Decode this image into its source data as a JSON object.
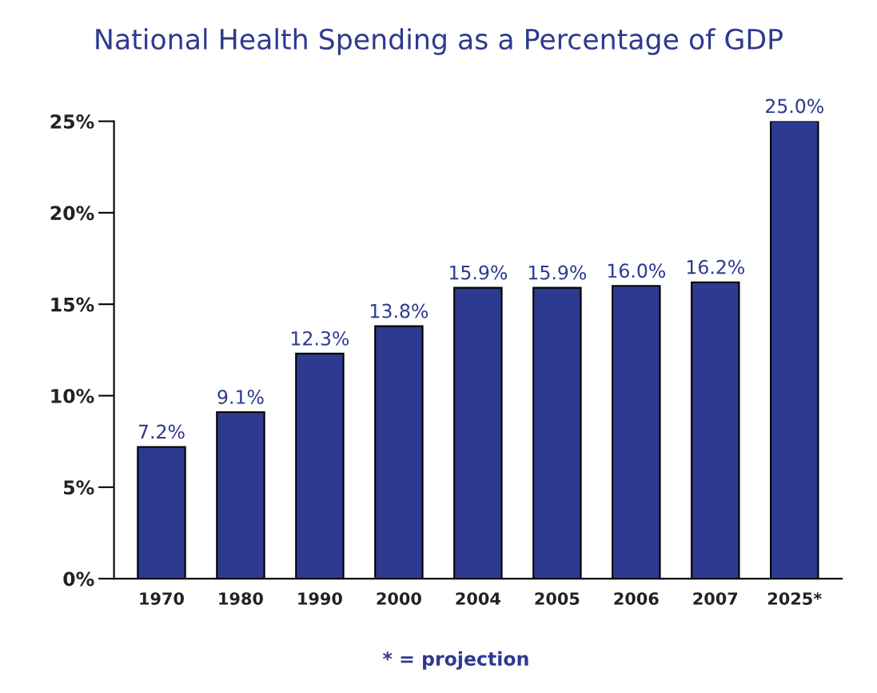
{
  "chart_data": {
    "type": "bar",
    "title": "National Health Spending as a Percentage of GDP",
    "categories": [
      "1970",
      "1980",
      "1990",
      "2000",
      "2004",
      "2005",
      "2006",
      "2007",
      "2025*"
    ],
    "values": [
      7.2,
      9.1,
      12.3,
      13.8,
      15.9,
      15.9,
      16.0,
      16.2,
      25.0
    ],
    "value_labels": [
      "7.2%",
      "9.1%",
      "12.3%",
      "13.8%",
      "15.9%",
      "15.9%",
      "16.0%",
      "16.2%",
      "25.0%"
    ],
    "color": "#2e3a8f",
    "ylim": [
      0,
      25
    ],
    "yticks": [
      {
        "value": 0,
        "label": "0%"
      },
      {
        "value": 5,
        "label": "5%"
      },
      {
        "value": 10,
        "label": "10%"
      },
      {
        "value": 15,
        "label": "15%"
      },
      {
        "value": 20,
        "label": "20%"
      },
      {
        "value": 25,
        "label": "25%"
      }
    ],
    "annotations": [
      "* = projection"
    ],
    "grid": false
  }
}
